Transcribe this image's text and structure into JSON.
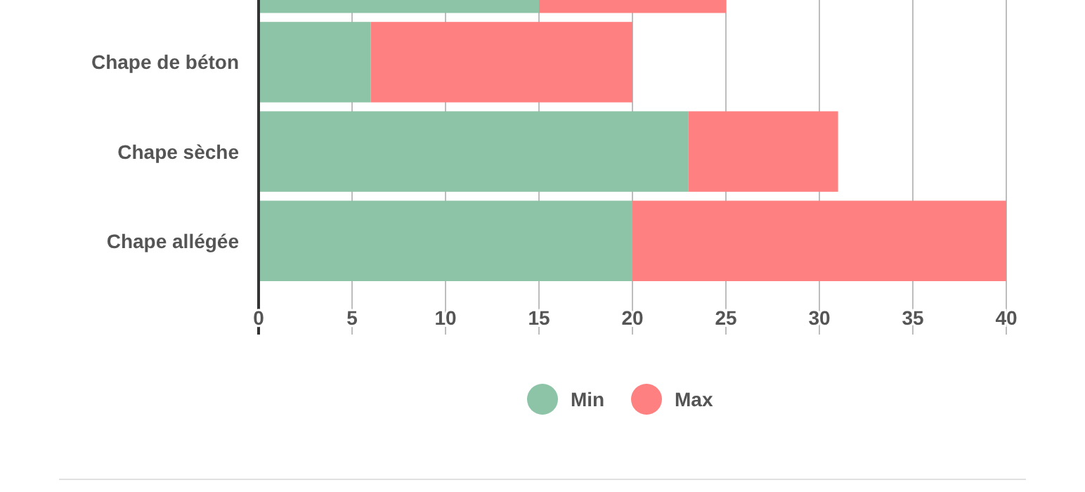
{
  "chart_data": {
    "type": "bar",
    "orientation": "horizontal",
    "stacked": true,
    "categories": [
      null,
      "Chape de béton",
      "Chape sèche",
      "Chape allégée"
    ],
    "series": [
      {
        "name": "Min",
        "color": "#8dc3a7",
        "values": [
          15,
          6,
          23,
          20
        ]
      },
      {
        "name": "Max",
        "color": "#ff8080",
        "values": [
          10,
          14,
          8,
          20
        ]
      }
    ],
    "xlim": [
      0,
      40
    ],
    "xticks": [
      0,
      5,
      10,
      15,
      20,
      25,
      30,
      35,
      40
    ],
    "grid": "x",
    "legend": "bottom"
  }
}
